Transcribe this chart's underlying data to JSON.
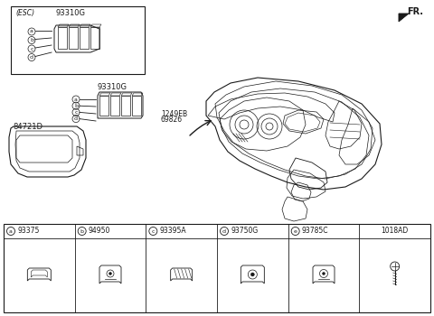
{
  "bg_color": "#ffffff",
  "line_color": "#1a1a1a",
  "fr_label": "FR.",
  "esc_label": "(ESC)",
  "label_93310G_1": "93310G",
  "label_93310G_2": "93310G",
  "label_1249EB": "1249EB",
  "label_69826": "69826",
  "label_84721D": "84721D",
  "legend_items": [
    {
      "letter": "a",
      "code": "93375"
    },
    {
      "letter": "b",
      "code": "94950"
    },
    {
      "letter": "c",
      "code": "93395A"
    },
    {
      "letter": "d",
      "code": "93750G"
    },
    {
      "letter": "e",
      "code": "93785C"
    },
    {
      "letter": "",
      "code": "1018AD"
    }
  ],
  "fs_tiny": 5,
  "fs_small": 6,
  "fs_med": 7,
  "fs_large": 8
}
